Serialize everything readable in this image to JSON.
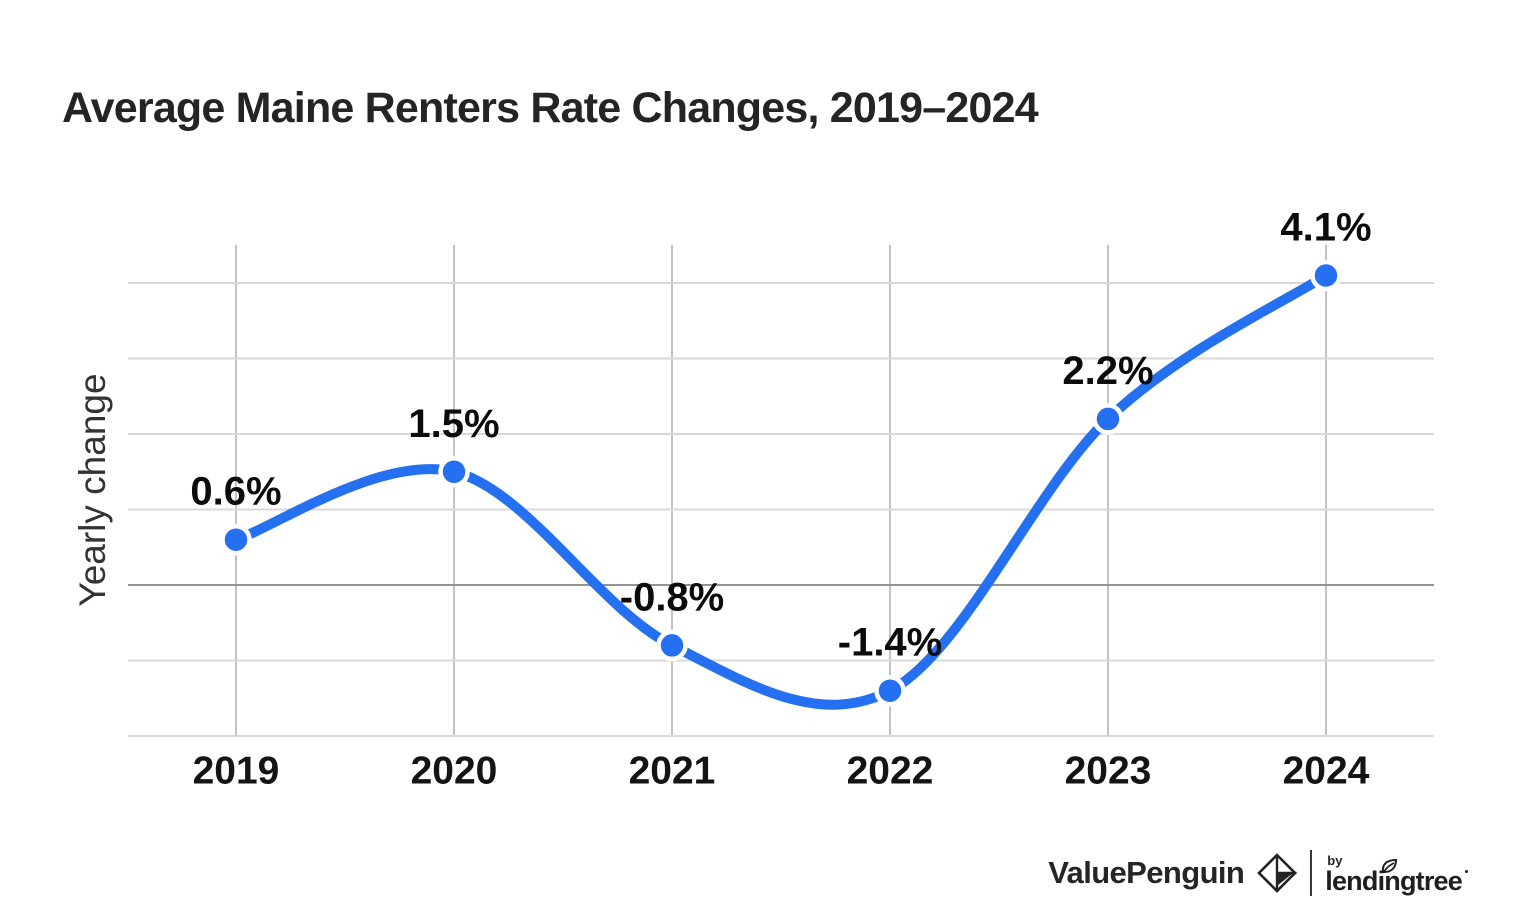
{
  "title": "Average Maine Renters Rate Changes, 2019–2024",
  "chart_data": {
    "type": "line",
    "categories": [
      "2019",
      "2020",
      "2021",
      "2022",
      "2023",
      "2024"
    ],
    "values": [
      0.6,
      1.5,
      -0.8,
      -1.4,
      2.2,
      4.1
    ],
    "point_labels": [
      "0.6%",
      "1.5%",
      "-0.8%",
      "-1.4%",
      "2.2%",
      "4.1%"
    ],
    "title": "Average Maine Renters Rate Changes, 2019–2024",
    "xlabel": "",
    "ylabel": "Yearly change",
    "ylim": [
      -2,
      4
    ],
    "grid_step": 1,
    "grid": true,
    "legend": false,
    "line_color": "#2470f0",
    "point_color": "#2470f0",
    "point_halo_color": "#ffffff",
    "h_grid_color": "#d9d9d9",
    "v_grid_color": "#c2c2c2",
    "zero_line_color": "#949494",
    "label_color": "#0b0b0b",
    "tick_color": "#141414"
  },
  "footer": {
    "brand": "ValuePenguin",
    "by_label": "by",
    "partner": "lendingtree",
    "icons": [
      "valuepenguin-diamond-icon",
      "lendingtree-leaf-icon"
    ]
  }
}
